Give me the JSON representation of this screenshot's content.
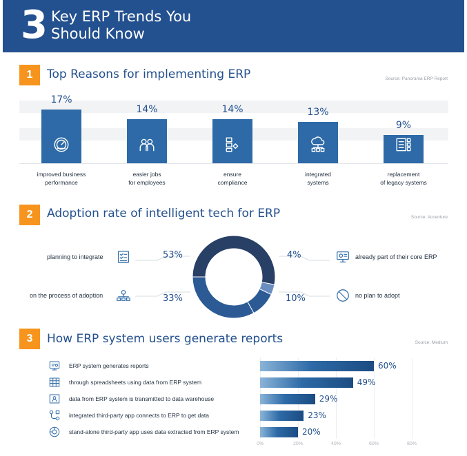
{
  "header": {
    "number": "3",
    "title": "Key ERP Trends You Should Know"
  },
  "colors": {
    "header_bg": "#23508e",
    "accent": "#f7941d",
    "bar": "#2d6aa7",
    "donut_dark": "#283f66",
    "donut_mid": "#2c5a95",
    "donut_light": "#6b8ec0"
  },
  "sections": [
    {
      "number": "1",
      "title": "Top Reasons for implementing ERP",
      "source": "Source: Panorama ERP Report"
    },
    {
      "number": "2",
      "title": "Adoption rate of intelligent tech for ERP",
      "source": "Source: Accenture"
    },
    {
      "number": "3",
      "title": "How ERP system users generate reports",
      "source": "Source: Medium"
    }
  ],
  "chart_data": [
    {
      "type": "bar",
      "title": "Top Reasons for implementing ERP",
      "categories": [
        "improved business performance",
        "easier jobs for employees",
        "ensure compliance",
        "integrated systems",
        "replacement of legacy systems"
      ],
      "category_lines": [
        [
          "improved business",
          "performance"
        ],
        [
          "easier jobs",
          "for employees"
        ],
        [
          "ensure",
          "compliance"
        ],
        [
          "integrated",
          "systems"
        ],
        [
          "replacement",
          "of legacy systems"
        ]
      ],
      "values": [
        17,
        14,
        14,
        13,
        9
      ],
      "labels": [
        "17%",
        "14%",
        "14%",
        "13%",
        "9%"
      ],
      "icons": [
        "speedometer-icon",
        "team-icon",
        "handshake-icon",
        "cloud-network-icon",
        "server-list-icon"
      ],
      "unit": "%"
    },
    {
      "type": "pie",
      "title": "Adoption rate of intelligent tech for ERP",
      "categories": [
        "planning to integrate",
        "on the process of adoption",
        "already part of their core ERP",
        "no plan to adopt"
      ],
      "values": [
        53,
        33,
        4,
        10
      ],
      "labels": [
        "53%",
        "33%",
        "4%",
        "10%"
      ],
      "icons": [
        "checklist-icon",
        "network-icon",
        "monitor-icon",
        "prohibited-icon"
      ],
      "unit": "%"
    },
    {
      "type": "bar",
      "orientation": "horizontal",
      "title": "How ERP system users generate reports",
      "categories": [
        "ERP system generates reports",
        "through spreadsheets using data from ERP system",
        "data from ERP system is transmitted to data warehouse",
        "integrated third-party app connects to ERP to get data",
        "stand-alone third-party app uses data extracted from ERP system"
      ],
      "values": [
        60,
        49,
        29,
        23,
        20
      ],
      "labels": [
        "60%",
        "49%",
        "29%",
        "23%",
        "20%"
      ],
      "icons": [
        "report-icon",
        "spreadsheet-icon",
        "warehouse-icon",
        "app-connect-icon",
        "standalone-app-icon"
      ],
      "xlim": [
        0,
        80
      ],
      "xticks": [
        "0%",
        "20%",
        "40%",
        "60%",
        "80%"
      ],
      "unit": "%"
    }
  ]
}
